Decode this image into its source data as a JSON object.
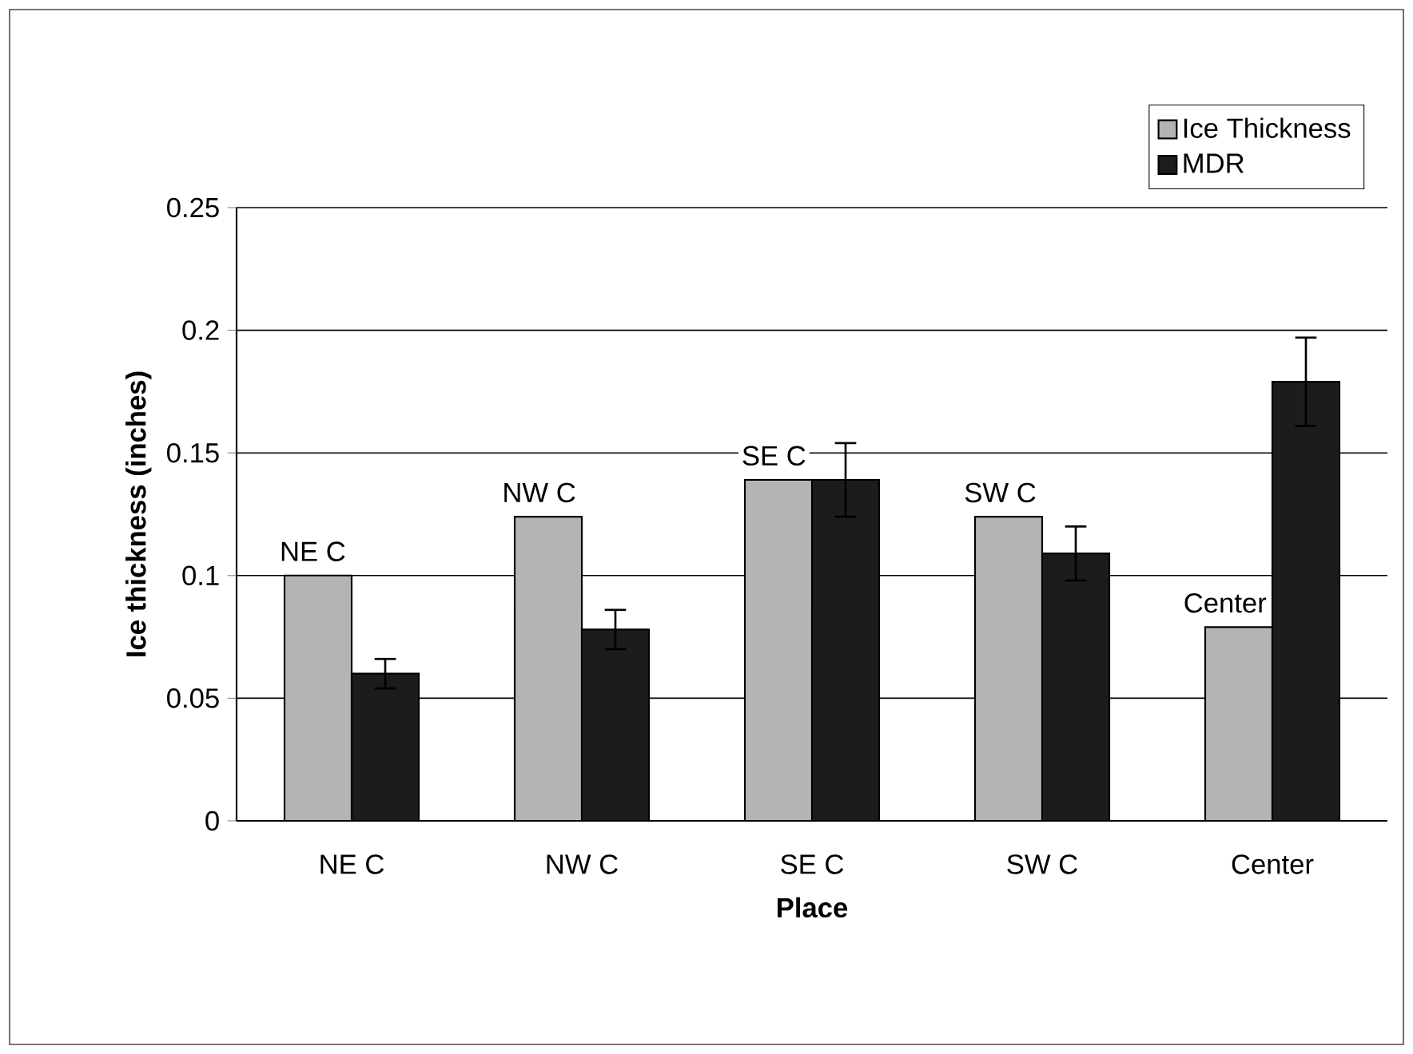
{
  "chart_data": {
    "type": "bar",
    "xlabel": "Place",
    "ylabel": "Ice thickness (inches)",
    "categories": [
      "NE C",
      "NW C",
      "SE C",
      "SW C",
      "Center"
    ],
    "series": [
      {
        "name": "Ice Thickness",
        "color": "#b4b4b4",
        "values": [
          0.1,
          0.124,
          0.139,
          0.124,
          0.079
        ]
      },
      {
        "name": "MDR",
        "color": "#1c1c1c",
        "values": [
          0.06,
          0.078,
          0.139,
          0.109,
          0.179
        ],
        "errors": [
          0.006,
          0.008,
          0.015,
          0.011,
          0.018
        ]
      }
    ],
    "ylim": [
      0,
      0.25
    ],
    "yticks": [
      0,
      0.05,
      0.1,
      0.15,
      0.2,
      0.25
    ],
    "grid": "y",
    "legend": "top right",
    "annotations": [
      {
        "text": "NE C",
        "x": "NE C",
        "y": 0.1
      },
      {
        "text": "NW C",
        "x": "NW C",
        "y": 0.124
      },
      {
        "text": "SE C",
        "x": "SE C",
        "y": 0.139
      },
      {
        "text": "SW C",
        "x": "SW C",
        "y": 0.124
      },
      {
        "text": "Center",
        "x": "Center",
        "y": 0.079
      }
    ]
  }
}
